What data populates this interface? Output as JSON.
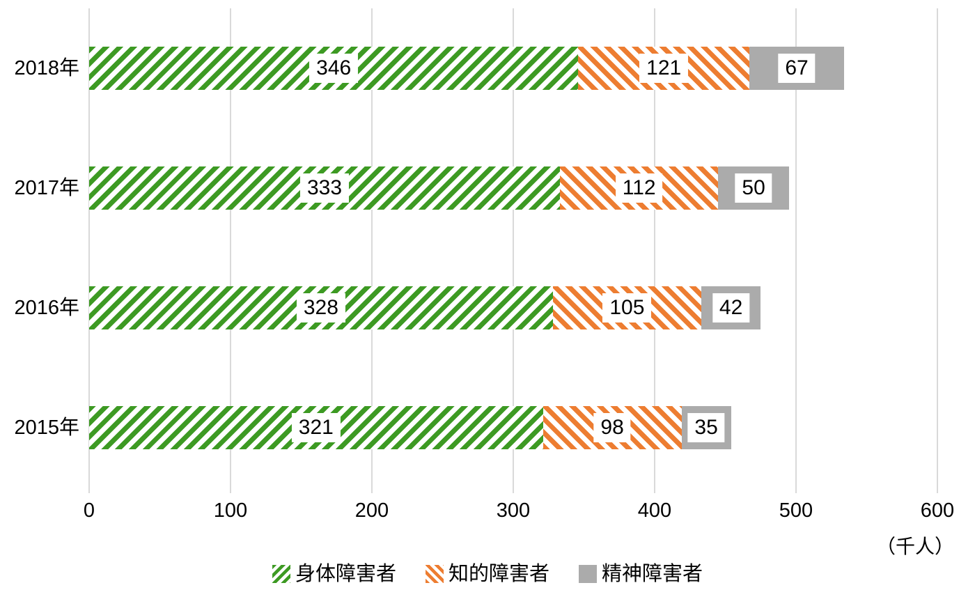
{
  "chart_data": {
    "type": "bar",
    "orientation": "horizontal",
    "stacked": true,
    "grid": true,
    "legend_position": "bottom",
    "categories": [
      "2018年",
      "2017年",
      "2016年",
      "2015年"
    ],
    "series": [
      {
        "name": "身体障害者",
        "pattern": "diagonal-forward",
        "color": "#3d9a23",
        "values": [
          346,
          333,
          328,
          321
        ]
      },
      {
        "name": "知的障害者",
        "pattern": "diagonal-back",
        "color": "#ed7d31",
        "values": [
          121,
          112,
          105,
          98
        ]
      },
      {
        "name": "精神障害者",
        "pattern": "solid",
        "color": "#ababab",
        "values": [
          67,
          50,
          42,
          35
        ]
      }
    ],
    "x_axis": {
      "min": 0,
      "max": 600,
      "ticks": [
        "0",
        "100",
        "200",
        "300",
        "400",
        "500",
        "600"
      ],
      "tick_values": [
        0,
        100,
        200,
        300,
        400,
        500,
        600
      ],
      "unit_label": "（千人）"
    },
    "colors": {
      "gridline": "#d9d9d9",
      "label_box_background": "#ffffff",
      "text": "#000000"
    }
  }
}
